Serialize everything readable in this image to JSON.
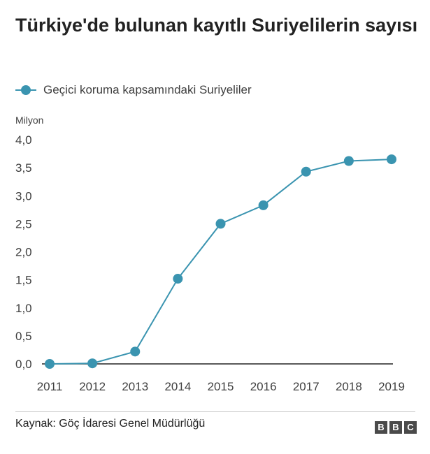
{
  "chart_data": {
    "type": "line",
    "title": "Türkiye'de bulunan kayıtlı Suriyelilerin sayısı",
    "ylabel": "Milyon",
    "xlabel": "",
    "x": [
      "2011",
      "2012",
      "2013",
      "2014",
      "2015",
      "2016",
      "2017",
      "2018",
      "2019"
    ],
    "series": [
      {
        "name": "Geçici koruma kapsamındaki Suriyeliler",
        "values": [
          0.0,
          0.01,
          0.22,
          1.52,
          2.5,
          2.83,
          3.43,
          3.62,
          3.65
        ]
      }
    ],
    "y_ticks": [
      "0,0",
      "0,5",
      "1,0",
      "1,5",
      "2,0",
      "2,5",
      "3,0",
      "3,5",
      "4,0"
    ],
    "ylim": [
      0,
      4
    ],
    "grid": false,
    "legend_position": "top-left",
    "colors": {
      "series": "#3a94b0",
      "axis": "#222222"
    }
  },
  "footer": {
    "source": "Kaynak: Göç İdaresi Genel Müdürlüğü",
    "logo_letters": [
      "B",
      "B",
      "C"
    ]
  }
}
